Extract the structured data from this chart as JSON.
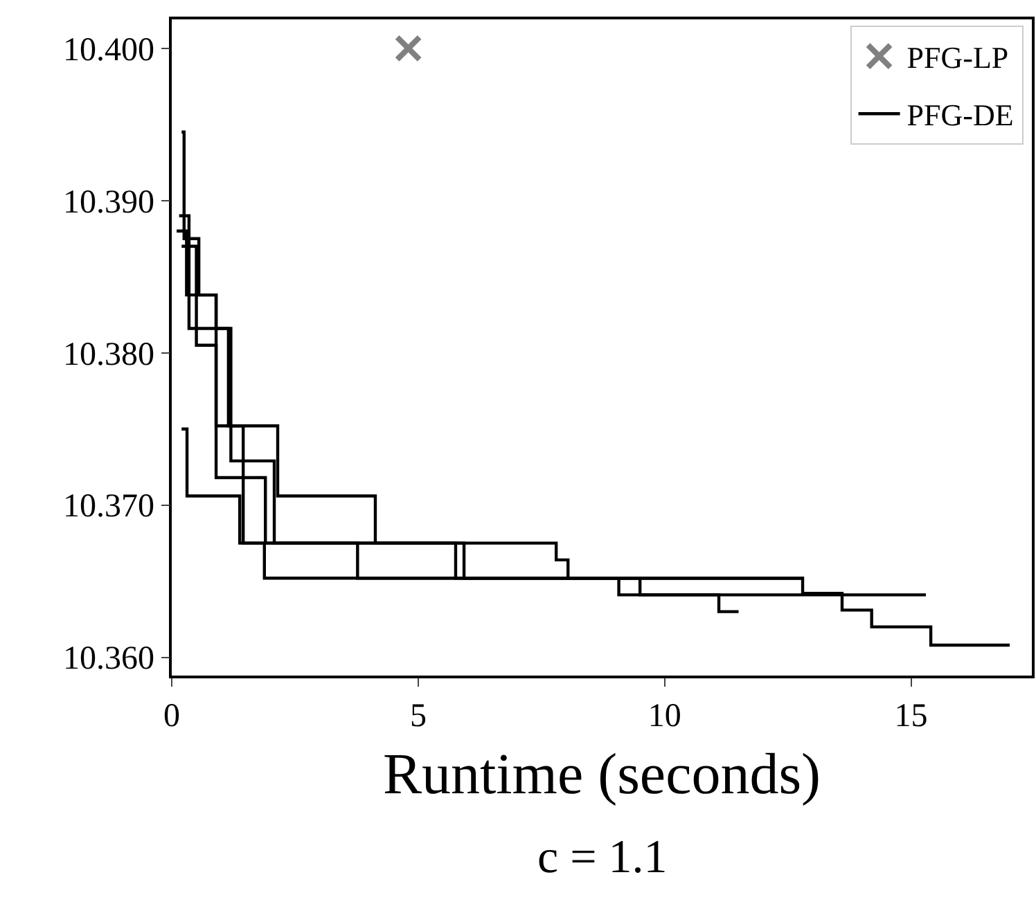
{
  "chart_data": {
    "type": "step",
    "xlabel": "Runtime (seconds)",
    "annotations": [
      "c = 1.1"
    ],
    "xlim": [
      0,
      17.45
    ],
    "ylim": [
      10.3588,
      10.4019
    ],
    "xticks": [
      0,
      5,
      10,
      15
    ],
    "yticks": [
      {
        "value": 10.36,
        "label": "10.360"
      },
      {
        "value": 10.37,
        "label": "10.370"
      },
      {
        "value": 10.38,
        "label": "10.380"
      },
      {
        "value": 10.39,
        "label": "10.390"
      },
      {
        "value": 10.4,
        "label": "10.400"
      }
    ],
    "grid": false,
    "legend": "top right",
    "series": [
      {
        "type": "scatter",
        "name": "PFG-LP",
        "color": "#808080",
        "marker": "cross",
        "x": [
          4.8
        ],
        "values": [
          10.4
        ]
      },
      {
        "name": "PFG-DE",
        "color": "#000000",
        "line_style": "solid",
        "x": [
          0.2,
          0.25,
          0.55,
          0.9,
          2.15,
          4.13,
          7.8,
          8.04,
          12.8,
          13.6,
          14.2,
          15.4,
          17.0
        ],
        "values": [
          10.3945,
          10.3875,
          10.3838,
          10.3752,
          10.3706,
          10.3675,
          10.3664,
          10.3652,
          10.3642,
          10.3631,
          10.362,
          10.3608,
          10.3608
        ]
      },
      {
        "color": "#000000",
        "x": [
          0.2,
          0.31,
          1.38,
          1.88,
          9.07,
          11.1,
          11.5
        ],
        "values": [
          10.375,
          10.3706,
          10.3675,
          10.3652,
          10.3641,
          10.363,
          10.363
        ]
      },
      {
        "color": "#000000",
        "x": [
          0.15,
          0.35,
          1.2,
          2.08,
          3.77,
          9.5,
          15.3
        ],
        "values": [
          10.389,
          10.3816,
          10.3729,
          10.3675,
          10.3652,
          10.3641,
          10.3641
        ]
      },
      {
        "color": "#000000",
        "x": [
          0.2,
          0.5,
          0.9,
          1.9,
          5.76,
          12.8
        ],
        "values": [
          10.387,
          10.3805,
          10.3718,
          10.3675,
          10.3652,
          10.3652
        ]
      },
      {
        "color": "#000000",
        "x": [
          0.1,
          0.3,
          0.9,
          1.15,
          1.45,
          5.93,
          12.8
        ],
        "values": [
          10.388,
          10.3838,
          10.3816,
          10.3752,
          10.3675,
          10.3652,
          10.3652
        ]
      }
    ]
  }
}
